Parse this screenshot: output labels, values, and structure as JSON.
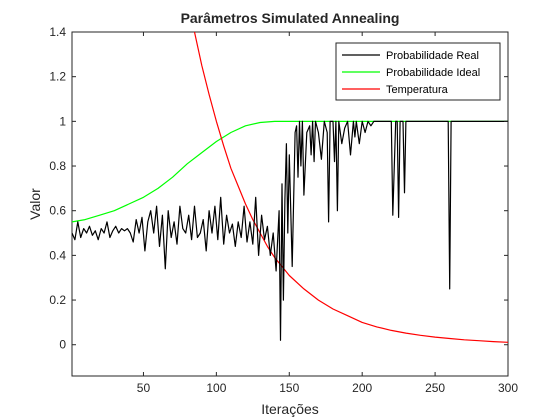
{
  "chart_data": {
    "type": "line",
    "title": "Parâmetros Simulated Annealing",
    "xlabel": "Iterações",
    "ylabel": "Valor",
    "xlim": [
      1,
      300
    ],
    "ylim": [
      -0.14,
      1.4
    ],
    "xticks": [
      50,
      100,
      150,
      200,
      250,
      300
    ],
    "yticks": [
      0,
      0.2,
      0.4,
      0.6,
      0.8,
      1,
      1.2,
      1.4
    ],
    "ytick_labels": [
      "0",
      "0.2",
      "0.4",
      "0.6",
      "0.8",
      "1",
      "1.2",
      "1.4"
    ],
    "grid": false,
    "legend_position": "top-right",
    "series": [
      {
        "name": "Probabilidade Real",
        "color": "#000000",
        "x": [
          1,
          3,
          5,
          7,
          9,
          11,
          13,
          15,
          17,
          19,
          21,
          23,
          25,
          27,
          29,
          31,
          33,
          35,
          37,
          39,
          41,
          43,
          45,
          47,
          49,
          51,
          53,
          55,
          57,
          59,
          61,
          63,
          65,
          67,
          69,
          71,
          73,
          75,
          77,
          79,
          81,
          83,
          85,
          87,
          89,
          91,
          93,
          95,
          97,
          99,
          101,
          103,
          105,
          107,
          109,
          111,
          113,
          115,
          117,
          119,
          121,
          123,
          125,
          127,
          129,
          131,
          133,
          135,
          137,
          139,
          141,
          143,
          144,
          145,
          146,
          147,
          148,
          149,
          150,
          152,
          154,
          155,
          156,
          157,
          158,
          159,
          160,
          162,
          164,
          165,
          166,
          167,
          168,
          170,
          172,
          174,
          176,
          177,
          178,
          180,
          181,
          182,
          183,
          184,
          186,
          188,
          190,
          192,
          194,
          195,
          196,
          198,
          200,
          202,
          204,
          206,
          208,
          210,
          212,
          214,
          216,
          218,
          220,
          221,
          222,
          223,
          224,
          225,
          226,
          227,
          228,
          229,
          230,
          232,
          240,
          250,
          258,
          259,
          260,
          261,
          262,
          263,
          264,
          270,
          280,
          290,
          300
        ],
        "values": [
          0.5,
          0.47,
          0.55,
          0.48,
          0.52,
          0.5,
          0.53,
          0.49,
          0.51,
          0.47,
          0.52,
          0.5,
          0.55,
          0.48,
          0.51,
          0.53,
          0.5,
          0.52,
          0.51,
          0.52,
          0.5,
          0.46,
          0.56,
          0.5,
          0.57,
          0.42,
          0.55,
          0.6,
          0.5,
          0.62,
          0.44,
          0.58,
          0.34,
          0.6,
          0.48,
          0.55,
          0.45,
          0.62,
          0.52,
          0.5,
          0.58,
          0.47,
          0.62,
          0.48,
          0.5,
          0.56,
          0.42,
          0.6,
          0.5,
          0.62,
          0.47,
          0.66,
          0.45,
          0.58,
          0.5,
          0.54,
          0.44,
          0.55,
          0.48,
          0.62,
          0.46,
          0.55,
          0.45,
          0.66,
          0.4,
          0.58,
          0.47,
          0.53,
          0.4,
          0.5,
          0.33,
          0.6,
          0.02,
          0.72,
          0.2,
          0.65,
          0.9,
          0.5,
          0.85,
          0.35,
          0.95,
          0.98,
          0.75,
          1.0,
          0.8,
          1.0,
          0.67,
          0.95,
          0.98,
          0.85,
          1.0,
          0.82,
          1.0,
          0.95,
          0.83,
          1.0,
          0.95,
          0.55,
          1.0,
          1.0,
          0.82,
          1.0,
          0.6,
          1.0,
          0.9,
          0.97,
          1.0,
          0.85,
          1.0,
          0.93,
          1.0,
          0.9,
          1.0,
          0.95,
          1.0,
          0.98,
          1.0,
          1.0,
          1.0,
          1.0,
          1.0,
          1.0,
          1.0,
          0.58,
          0.8,
          1.0,
          1.0,
          0.57,
          1.0,
          1.0,
          1.0,
          0.68,
          1.0,
          1.0,
          1.0,
          1.0,
          1.0,
          1.0,
          0.25,
          1.0,
          1.0,
          1.0,
          1.0,
          1.0,
          1.0,
          1.0,
          1.0
        ]
      },
      {
        "name": "Probabilidade Ideal",
        "color": "#00ff00",
        "x": [
          1,
          10,
          20,
          30,
          40,
          50,
          60,
          70,
          80,
          90,
          100,
          110,
          120,
          130,
          140,
          150,
          160,
          170,
          180,
          190,
          200,
          220,
          250,
          300
        ],
        "values": [
          0.55,
          0.56,
          0.58,
          0.6,
          0.63,
          0.66,
          0.7,
          0.75,
          0.81,
          0.86,
          0.91,
          0.95,
          0.98,
          0.995,
          1.0,
          1.0,
          1.0,
          1.0,
          1.0,
          1.0,
          1.0,
          1.0,
          1.0,
          1.0
        ]
      },
      {
        "name": "Temperatura",
        "color": "#ff0000",
        "x": [
          85,
          90,
          95,
          100,
          105,
          110,
          115,
          120,
          125,
          130,
          135,
          140,
          145,
          150,
          160,
          170,
          180,
          190,
          200,
          210,
          220,
          230,
          240,
          250,
          260,
          270,
          280,
          290,
          300
        ],
        "values": [
          1.4,
          1.25,
          1.12,
          1.0,
          0.89,
          0.79,
          0.71,
          0.63,
          0.56,
          0.5,
          0.44,
          0.39,
          0.35,
          0.31,
          0.25,
          0.2,
          0.16,
          0.13,
          0.1,
          0.08,
          0.064,
          0.052,
          0.042,
          0.034,
          0.028,
          0.022,
          0.018,
          0.014,
          0.011
        ]
      }
    ]
  }
}
